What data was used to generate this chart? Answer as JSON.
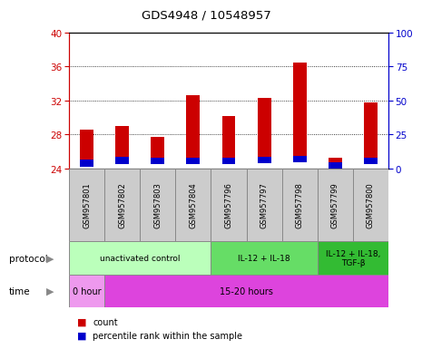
{
  "title": "GDS4948 / 10548957",
  "samples": [
    "GSM957801",
    "GSM957802",
    "GSM957803",
    "GSM957804",
    "GSM957796",
    "GSM957797",
    "GSM957798",
    "GSM957799",
    "GSM957800"
  ],
  "count_top": [
    28.6,
    29.0,
    27.7,
    32.6,
    30.2,
    32.3,
    36.5,
    25.2,
    31.8
  ],
  "count_bottom": [
    24.2,
    24.5,
    24.5,
    24.5,
    24.5,
    24.6,
    24.7,
    23.8,
    24.5
  ],
  "percentile_bottom": [
    24.2,
    24.5,
    24.5,
    24.5,
    24.5,
    24.6,
    24.7,
    23.8,
    24.5
  ],
  "percentile_top": [
    25.0,
    25.4,
    25.2,
    25.2,
    25.2,
    25.4,
    25.5,
    24.7,
    25.3
  ],
  "ylim": [
    24,
    40
  ],
  "yticks_left": [
    24,
    28,
    32,
    36,
    40
  ],
  "yticks_right": [
    0,
    25,
    50,
    75,
    100
  ],
  "bar_color": "#cc0000",
  "percentile_color": "#0000cc",
  "left_axis_color": "#cc0000",
  "right_axis_color": "#0000cc",
  "protocol_groups": [
    {
      "label": "unactivated control",
      "start": 0,
      "end": 4,
      "color": "#bbffbb"
    },
    {
      "label": "IL-12 + IL-18",
      "start": 4,
      "end": 7,
      "color": "#66dd66"
    },
    {
      "label": "IL-12 + IL-18,\nTGF-β",
      "start": 7,
      "end": 9,
      "color": "#33bb33"
    }
  ],
  "time_groups": [
    {
      "label": "0 hour",
      "start": 0,
      "end": 1,
      "color": "#ee99ee"
    },
    {
      "label": "15-20 hours",
      "start": 1,
      "end": 9,
      "color": "#dd44dd"
    }
  ],
  "sample_box_color": "#cccccc",
  "sample_box_edge": "#888888"
}
